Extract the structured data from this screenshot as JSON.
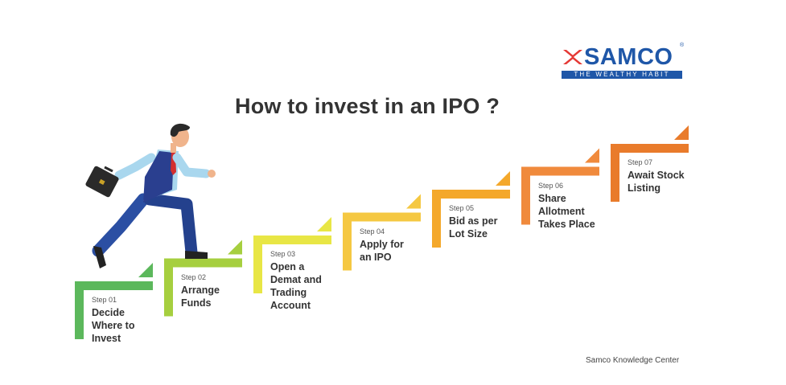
{
  "brand": {
    "name": "SAMCO",
    "tagline": "THE WEALTHY HABIT",
    "registered_mark": "®",
    "color": "#1f57a8",
    "accent_color": "#e53935"
  },
  "title": "How to invest in an IPO ?",
  "steps": [
    {
      "label": "Step 01",
      "text": "Decide\nWhere to\nInvest",
      "color": "#5cb85c"
    },
    {
      "label": "Step 02",
      "text": "Arrange\nFunds",
      "color": "#a6cf3f"
    },
    {
      "label": "Step 03",
      "text": "Open a\nDemat and\nTrading\nAccount",
      "color": "#e8e645"
    },
    {
      "label": "Step 04",
      "text": "Apply for\nan IPO",
      "color": "#f5c842"
    },
    {
      "label": "Step 05",
      "text": "Bid as per\nLot Size",
      "color": "#f4a82b"
    },
    {
      "label": "Step 06",
      "text": "Share\nAllotment\nTakes Place",
      "color": "#f08a3c"
    },
    {
      "label": "Step 07",
      "text": "Await Stock\nListing",
      "color": "#e97b2b"
    }
  ],
  "footer": "Samco Knowledge Center"
}
